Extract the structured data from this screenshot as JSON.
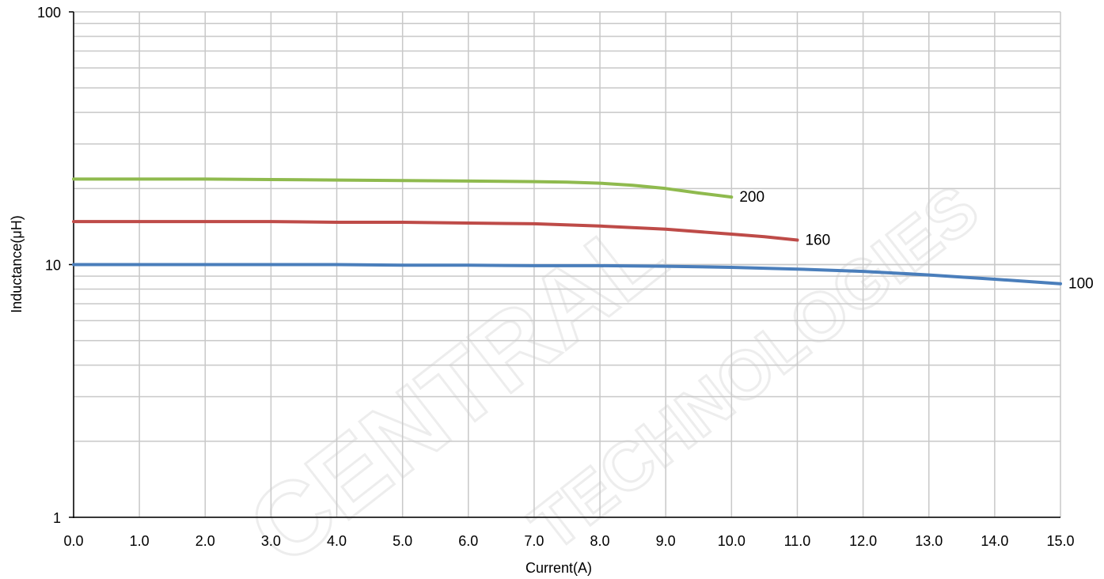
{
  "chart_data": {
    "type": "line",
    "title": "",
    "xlabel": "Current(A)",
    "ylabel": "Inductance(μH)",
    "x_scale": "linear",
    "y_scale": "log",
    "xlim": [
      0,
      15
    ],
    "ylim": [
      1,
      100
    ],
    "x_ticks": [
      "0.0",
      "1.0",
      "2.0",
      "3.0",
      "4.0",
      "5.0",
      "6.0",
      "7.0",
      "8.0",
      "9.0",
      "10.0",
      "11.0",
      "12.0",
      "13.0",
      "14.0",
      "15.0"
    ],
    "y_ticks": [
      "1",
      "10",
      "100"
    ],
    "grid": true,
    "legend": "none",
    "series": [
      {
        "name": "200",
        "color": "#8fba4e",
        "x": [
          0,
          1,
          2,
          3,
          4,
          5,
          6,
          7,
          7.5,
          8,
          8.5,
          9,
          9.5,
          10
        ],
        "y": [
          21.8,
          21.8,
          21.8,
          21.7,
          21.6,
          21.5,
          21.4,
          21.3,
          21.2,
          21.0,
          20.6,
          20.0,
          19.2,
          18.5
        ]
      },
      {
        "name": "160",
        "color": "#be4b48",
        "x": [
          0,
          1,
          2,
          3,
          4,
          5,
          6,
          7,
          8,
          9,
          10,
          10.5,
          11
        ],
        "y": [
          14.8,
          14.8,
          14.8,
          14.8,
          14.7,
          14.7,
          14.6,
          14.5,
          14.2,
          13.8,
          13.2,
          12.9,
          12.5
        ]
      },
      {
        "name": "100",
        "color": "#4a7ebb",
        "x": [
          0,
          1,
          2,
          3,
          4,
          5,
          6,
          7,
          8,
          9,
          10,
          11,
          12,
          13,
          14,
          15
        ],
        "y": [
          10,
          10,
          10,
          10,
          10,
          9.95,
          9.95,
          9.9,
          9.9,
          9.85,
          9.75,
          9.6,
          9.4,
          9.1,
          8.75,
          8.4
        ]
      }
    ]
  },
  "watermark": {
    "line1": "CENTRAL",
    "line2": "TECHNOLOGIES"
  }
}
